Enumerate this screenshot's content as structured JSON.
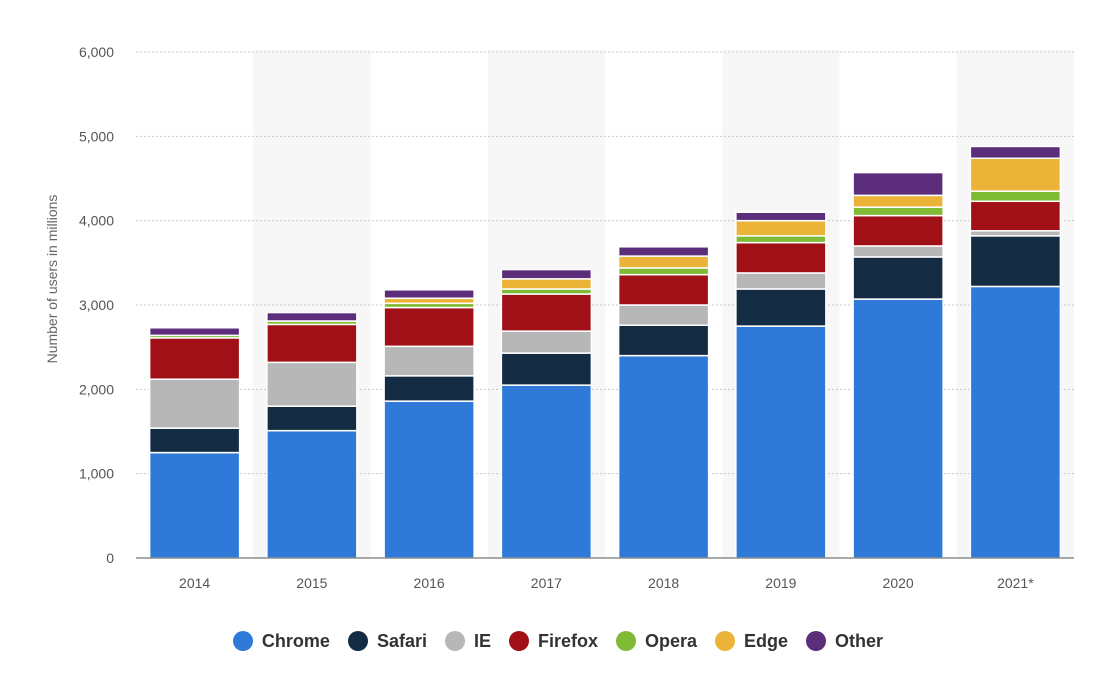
{
  "chart_data": {
    "type": "bar",
    "stacked": true,
    "title": "",
    "xlabel": "",
    "ylabel": "Number of users in millions",
    "ylim": [
      0,
      6000
    ],
    "yticks": [
      0,
      1000,
      2000,
      3000,
      4000,
      5000,
      6000
    ],
    "ytick_labels": [
      "0",
      "1,000",
      "2,000",
      "3,000",
      "4,000",
      "5,000",
      "6,000"
    ],
    "grid": true,
    "legend_position": "bottom",
    "categories": [
      "2014",
      "2015",
      "2016",
      "2017",
      "2018",
      "2019",
      "2020",
      "2021*"
    ],
    "series": [
      {
        "name": "Chrome",
        "color": "#2f7ad9",
        "values": [
          1250,
          1510,
          1860,
          2050,
          2400,
          2750,
          3070,
          3220
        ]
      },
      {
        "name": "Safari",
        "color": "#132b43",
        "values": [
          290,
          290,
          300,
          380,
          360,
          440,
          500,
          600
        ]
      },
      {
        "name": "IE",
        "color": "#b7b7b7",
        "values": [
          580,
          520,
          350,
          260,
          240,
          190,
          130,
          60
        ]
      },
      {
        "name": "Firefox",
        "color": "#a10f17",
        "values": [
          490,
          450,
          460,
          440,
          360,
          360,
          360,
          350
        ]
      },
      {
        "name": "Opera",
        "color": "#7fbb35",
        "values": [
          30,
          40,
          50,
          60,
          80,
          80,
          100,
          120
        ]
      },
      {
        "name": "Edge",
        "color": "#ebb439",
        "values": [
          0,
          0,
          60,
          120,
          140,
          180,
          140,
          390
        ]
      },
      {
        "name": "Other",
        "color": "#5c2d7a",
        "values": [
          90,
          100,
          100,
          110,
          110,
          100,
          270,
          140
        ]
      }
    ]
  }
}
